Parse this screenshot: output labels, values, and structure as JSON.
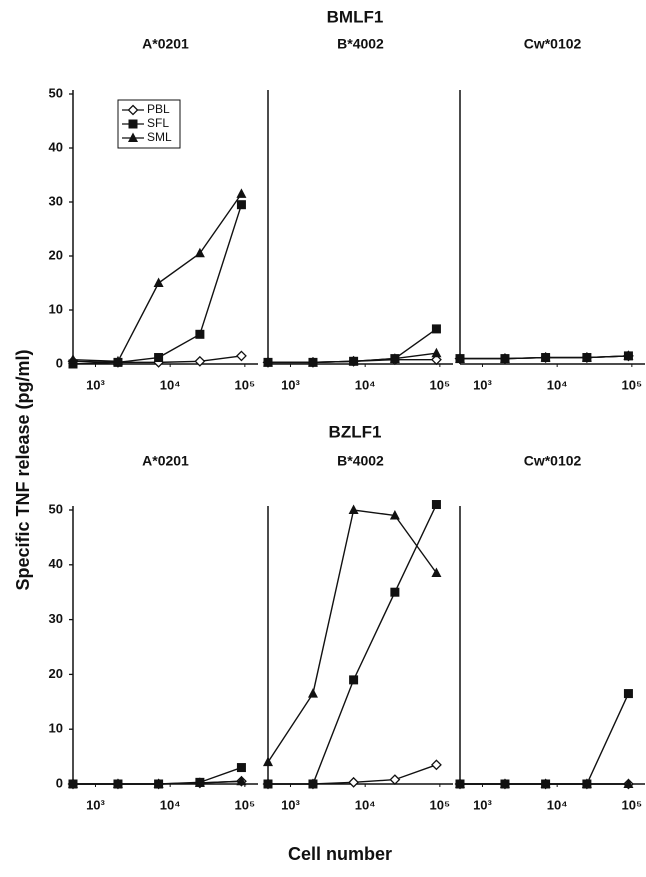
{
  "ylabel": "Specific TNF release (pg/ml)",
  "xlabel": "Cell number",
  "sections": [
    {
      "title": "BMLF1"
    },
    {
      "title": "BZLF1"
    }
  ],
  "chart_data": [
    {
      "type": "line",
      "title": "A*0201",
      "xscale": "log",
      "legend": "upper left",
      "x": [
        500,
        2000,
        7000,
        25000,
        90000
      ],
      "xlim": [
        500,
        150000
      ],
      "xticks": [
        {
          "value": 1000,
          "label": "10³"
        },
        {
          "value": 10000,
          "label": "10⁴"
        },
        {
          "value": 100000,
          "label": "10⁵"
        }
      ],
      "ylim": [
        0,
        50
      ],
      "yticks": [
        0,
        10,
        20,
        30,
        40,
        50
      ],
      "series": [
        {
          "name": "PBL",
          "marker": "diamond-open",
          "color": "#111111",
          "values": [
            0.5,
            0.3,
            0.3,
            0.5,
            1.5
          ]
        },
        {
          "name": "SFL",
          "marker": "square",
          "color": "#111111",
          "values": [
            0,
            0.3,
            1.2,
            5.5,
            29.5
          ]
        },
        {
          "name": "SML",
          "marker": "triangle",
          "color": "#111111",
          "values": [
            0.8,
            0.5,
            15,
            20.5,
            31.5
          ]
        }
      ]
    },
    {
      "type": "line",
      "title": "B*4002",
      "xscale": "log",
      "x": [
        500,
        2000,
        7000,
        25000,
        90000
      ],
      "xlim": [
        500,
        150000
      ],
      "xticks": [
        {
          "value": 1000,
          "label": "10³"
        },
        {
          "value": 10000,
          "label": "10⁴"
        },
        {
          "value": 100000,
          "label": "10⁵"
        }
      ],
      "ylim": [
        0,
        50
      ],
      "series": [
        {
          "marker": "diamond-open",
          "color": "#111111",
          "values": [
            0.3,
            0.3,
            0.5,
            0.8,
            0.8
          ]
        },
        {
          "marker": "square",
          "color": "#111111",
          "values": [
            0.3,
            0.3,
            0.5,
            1,
            6.5
          ]
        },
        {
          "marker": "triangle",
          "color": "#111111",
          "values": [
            0.3,
            0.3,
            0.5,
            1,
            2
          ]
        }
      ]
    },
    {
      "type": "line",
      "title": "Cw*0102",
      "xscale": "log",
      "x": [
        500,
        2000,
        7000,
        25000,
        90000
      ],
      "xlim": [
        500,
        150000
      ],
      "xticks": [
        {
          "value": 1000,
          "label": "10³"
        },
        {
          "value": 10000,
          "label": "10⁴"
        },
        {
          "value": 100000,
          "label": "10⁵"
        }
      ],
      "ylim": [
        0,
        50
      ],
      "series": [
        {
          "marker": "diamond-open",
          "color": "#111111",
          "values": [
            1,
            1,
            1.2,
            1.2,
            1.5
          ]
        },
        {
          "marker": "square",
          "color": "#111111",
          "values": [
            1,
            1,
            1.2,
            1.2,
            1.5
          ]
        },
        {
          "marker": "triangle",
          "color": "#111111",
          "values": [
            1,
            1,
            1.2,
            1.2,
            1.5
          ]
        }
      ]
    },
    {
      "type": "line",
      "title": "A*0201",
      "xscale": "log",
      "x": [
        500,
        2000,
        7000,
        25000,
        90000
      ],
      "xlim": [
        500,
        150000
      ],
      "xticks": [
        {
          "value": 1000,
          "label": "10³"
        },
        {
          "value": 10000,
          "label": "10⁴"
        },
        {
          "value": 100000,
          "label": "10⁵"
        }
      ],
      "ylim": [
        0,
        50
      ],
      "yticks": [
        0,
        10,
        20,
        30,
        40,
        50
      ],
      "series": [
        {
          "marker": "diamond-open",
          "color": "#111111",
          "values": [
            0,
            0,
            0,
            0.2,
            0.5
          ]
        },
        {
          "marker": "square",
          "color": "#111111",
          "values": [
            0,
            0,
            0,
            0.3,
            3
          ]
        },
        {
          "marker": "triangle",
          "color": "#111111",
          "values": [
            0,
            0,
            0,
            0.2,
            0.5
          ]
        }
      ]
    },
    {
      "type": "line",
      "title": "B*4002",
      "xscale": "log",
      "x": [
        500,
        2000,
        7000,
        25000,
        90000
      ],
      "xlim": [
        500,
        150000
      ],
      "xticks": [
        {
          "value": 1000,
          "label": "10³"
        },
        {
          "value": 10000,
          "label": "10⁴"
        },
        {
          "value": 100000,
          "label": "10⁵"
        }
      ],
      "ylim": [
        0,
        50
      ],
      "series": [
        {
          "marker": "diamond-open",
          "color": "#111111",
          "values": [
            0,
            0,
            0.3,
            0.8,
            3.5
          ]
        },
        {
          "marker": "square",
          "color": "#111111",
          "values": [
            0,
            0,
            19,
            35,
            51
          ]
        },
        {
          "marker": "triangle",
          "color": "#111111",
          "values": [
            4,
            16.5,
            50,
            49,
            38.5
          ]
        }
      ]
    },
    {
      "type": "line",
      "title": "Cw*0102",
      "xscale": "log",
      "x": [
        500,
        2000,
        7000,
        25000,
        90000
      ],
      "xlim": [
        500,
        150000
      ],
      "xticks": [
        {
          "value": 1000,
          "label": "10³"
        },
        {
          "value": 10000,
          "label": "10⁴"
        },
        {
          "value": 100000,
          "label": "10⁵"
        }
      ],
      "ylim": [
        0,
        50
      ],
      "series": [
        {
          "marker": "diamond-open",
          "color": "#111111",
          "values": [
            0,
            0,
            0,
            0,
            0
          ]
        },
        {
          "marker": "square",
          "color": "#111111",
          "values": [
            0,
            0,
            0,
            0,
            16.5
          ]
        },
        {
          "marker": "triangle",
          "color": "#111111",
          "values": [
            0,
            0,
            0,
            0,
            0
          ]
        }
      ]
    }
  ]
}
